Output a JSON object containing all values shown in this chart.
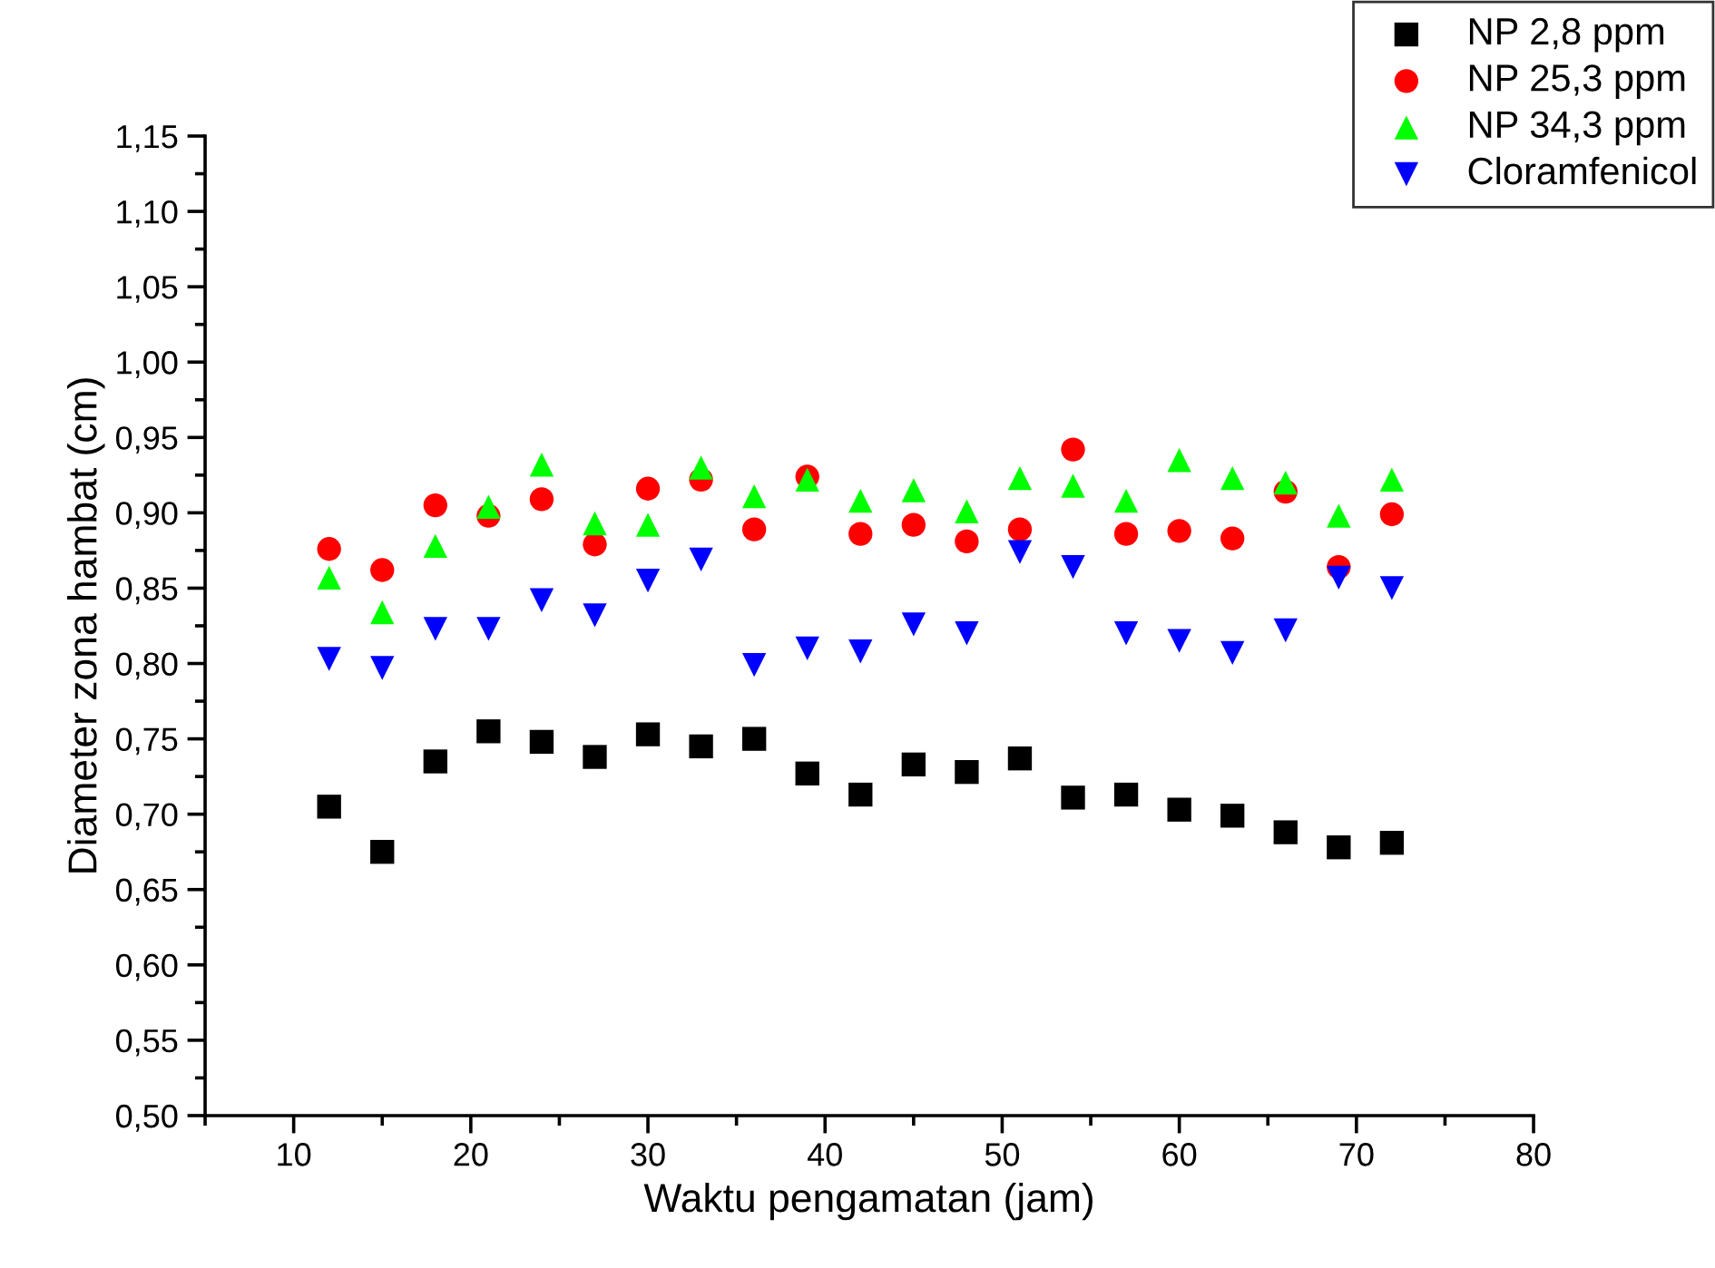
{
  "chart_data": {
    "type": "scatter",
    "xlabel": "Waktu pengamatan (jam)",
    "ylabel": "Diameter zona hambat (cm)",
    "x": [
      12,
      15,
      18,
      21,
      24,
      27,
      30,
      33,
      36,
      39,
      42,
      45,
      48,
      51,
      54,
      57,
      60,
      63,
      66,
      69,
      72
    ],
    "xlim": [
      5,
      80
    ],
    "xticks": [
      10,
      20,
      30,
      40,
      50,
      60,
      70,
      80
    ],
    "ylim": [
      0.5,
      1.15
    ],
    "yticks": [
      {
        "value": 0.5,
        "label": "0,50"
      },
      {
        "value": 0.55,
        "label": "0,55"
      },
      {
        "value": 0.6,
        "label": "0,60"
      },
      {
        "value": 0.65,
        "label": "0,65"
      },
      {
        "value": 0.7,
        "label": "0,70"
      },
      {
        "value": 0.75,
        "label": "0,75"
      },
      {
        "value": 0.8,
        "label": "0,80"
      },
      {
        "value": 0.85,
        "label": "0,85"
      },
      {
        "value": 0.9,
        "label": "0,90"
      },
      {
        "value": 0.95,
        "label": "0,95"
      },
      {
        "value": 1.0,
        "label": "1,00"
      },
      {
        "value": 1.05,
        "label": "1,05"
      },
      {
        "value": 1.1,
        "label": "1,10"
      },
      {
        "value": 1.15,
        "label": "1,15"
      }
    ],
    "grid": false,
    "legend": "top right",
    "series": [
      {
        "name": "NP 2,8 ppm",
        "color": "#000000",
        "marker": "square",
        "values": [
          0.705,
          0.675,
          0.735,
          0.755,
          0.748,
          0.738,
          0.753,
          0.745,
          0.75,
          0.727,
          0.713,
          0.733,
          0.728,
          0.737,
          0.711,
          0.713,
          0.703,
          0.699,
          0.688,
          0.678,
          0.681
        ]
      },
      {
        "name": "NP 25,3 ppm",
        "color": "#ff0000",
        "marker": "circle",
        "values": [
          0.876,
          0.862,
          0.905,
          0.898,
          0.909,
          0.879,
          0.916,
          0.922,
          0.889,
          0.924,
          0.886,
          0.892,
          0.881,
          0.889,
          0.942,
          0.886,
          0.888,
          0.883,
          0.914,
          0.864,
          0.899
        ]
      },
      {
        "name": "NP 34,3 ppm",
        "color": "#00ff00",
        "marker": "triangle",
        "values": [
          0.857,
          0.834,
          0.878,
          0.904,
          0.932,
          0.893,
          0.892,
          0.93,
          0.911,
          0.922,
          0.908,
          0.915,
          0.901,
          0.923,
          0.918,
          0.908,
          0.935,
          0.923,
          0.92,
          0.898,
          0.922
        ]
      },
      {
        "name": "Cloramfenicol",
        "color": "#0000ff",
        "marker": "triangle_down",
        "values": [
          0.803,
          0.797,
          0.823,
          0.823,
          0.842,
          0.832,
          0.855,
          0.869,
          0.799,
          0.81,
          0.808,
          0.826,
          0.82,
          0.874,
          0.864,
          0.82,
          0.815,
          0.807,
          0.822,
          0.857,
          0.85
        ]
      }
    ]
  }
}
